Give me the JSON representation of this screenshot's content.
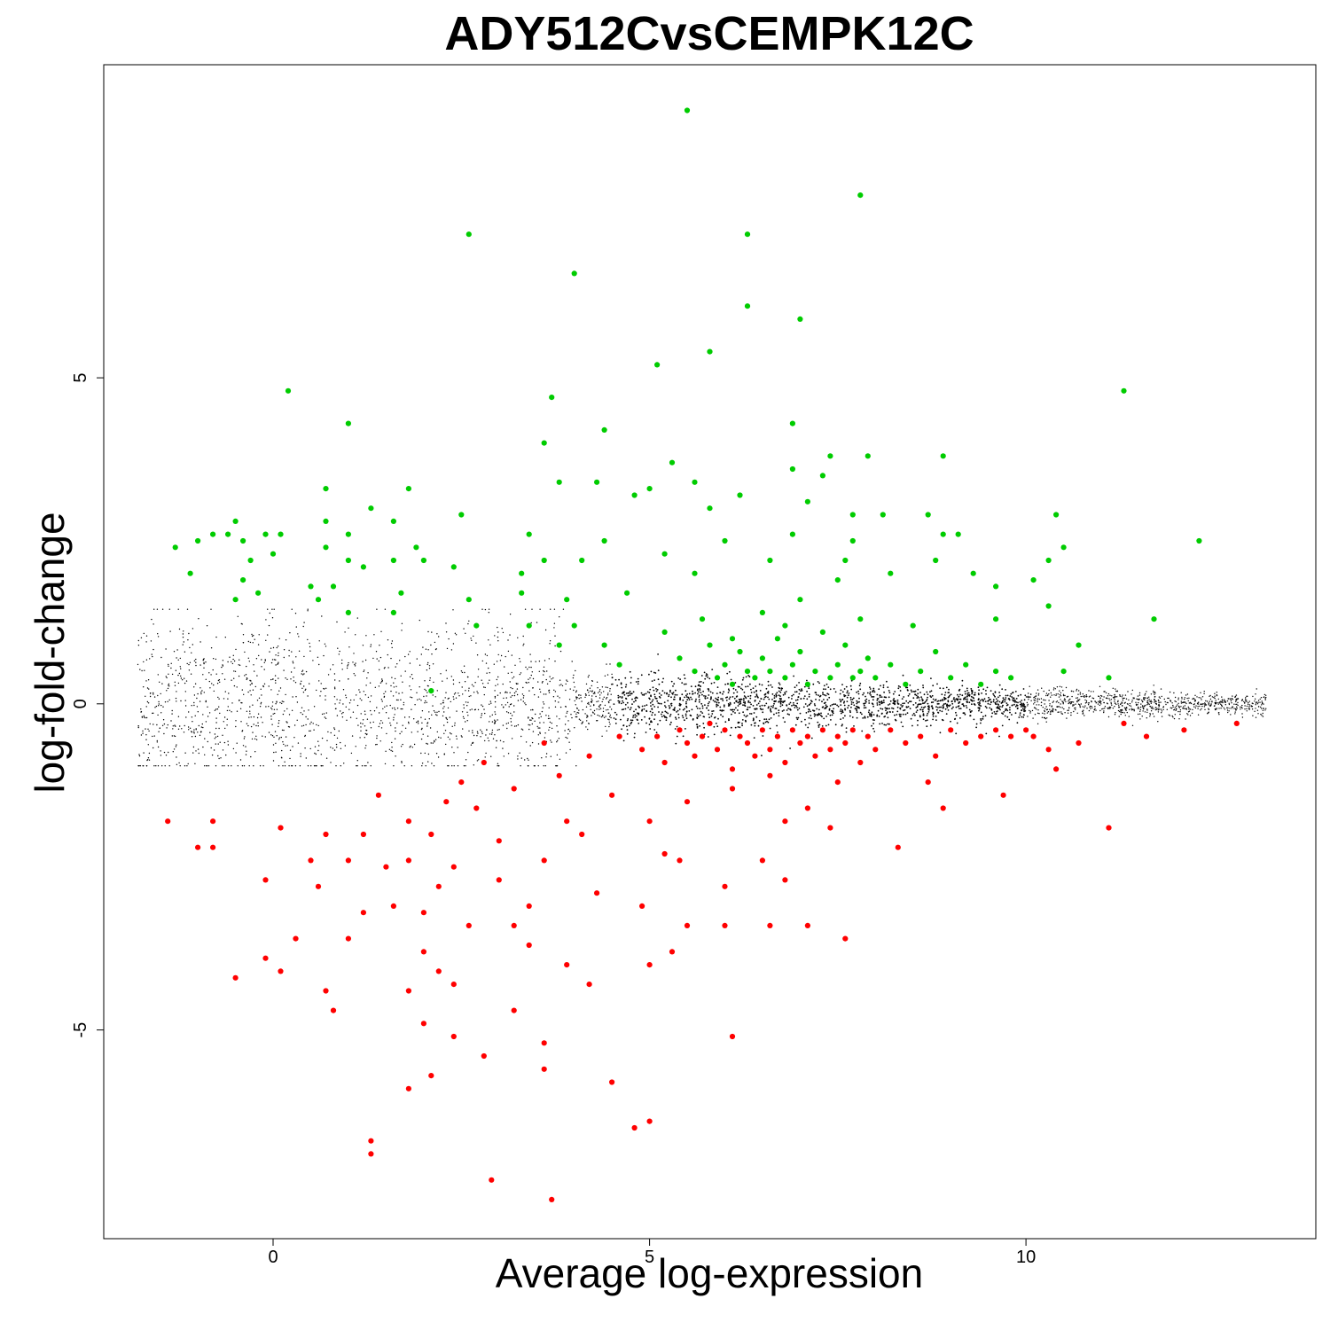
{
  "chart_data": {
    "type": "scatter",
    "title": "ADY512CvsCEMPK12C",
    "xlabel": "Average log-expression",
    "ylabel": "log-fold-change",
    "xlim": [
      -2.25,
      13.85
    ],
    "ylim": [
      -8.2,
      9.8
    ],
    "x_ticks": [
      0,
      5,
      10
    ],
    "x_tick_labels": [
      "0",
      "5",
      "10"
    ],
    "y_ticks": [
      -5,
      0,
      5
    ],
    "y_tick_labels": [
      "-5",
      "0",
      "5"
    ],
    "grid": false,
    "legend": "none",
    "colors": {
      "up": "#00cc00",
      "down": "#ff0000",
      "not_significant": "#000000"
    },
    "series": [
      {
        "key": "up",
        "color": "#00cc00",
        "points": [
          [
            5.5,
            9.1
          ],
          [
            7.8,
            7.8
          ],
          [
            2.6,
            7.2
          ],
          [
            6.3,
            7.2
          ],
          [
            4.0,
            6.6
          ],
          [
            6.3,
            6.1
          ],
          [
            7.0,
            5.9
          ],
          [
            5.8,
            5.4
          ],
          [
            5.1,
            5.2
          ],
          [
            0.2,
            4.8
          ],
          [
            11.3,
            4.8
          ],
          [
            3.7,
            4.7
          ],
          [
            1.0,
            4.3
          ],
          [
            6.9,
            4.3
          ],
          [
            4.4,
            4.2
          ],
          [
            3.6,
            4.0
          ],
          [
            7.9,
            3.8
          ],
          [
            8.9,
            3.8
          ],
          [
            7.4,
            3.8
          ],
          [
            5.3,
            3.7
          ],
          [
            6.9,
            3.6
          ],
          [
            7.3,
            3.5
          ],
          [
            0.7,
            3.3
          ],
          [
            1.8,
            3.3
          ],
          [
            3.8,
            3.4
          ],
          [
            4.3,
            3.4
          ],
          [
            5.6,
            3.4
          ],
          [
            5.0,
            3.3
          ],
          [
            4.8,
            3.2
          ],
          [
            6.2,
            3.2
          ],
          [
            7.1,
            3.1
          ],
          [
            1.3,
            3.0
          ],
          [
            5.8,
            3.0
          ],
          [
            -0.5,
            2.8
          ],
          [
            0.7,
            2.8
          ],
          [
            1.6,
            2.8
          ],
          [
            2.5,
            2.9
          ],
          [
            7.7,
            2.9
          ],
          [
            8.1,
            2.9
          ],
          [
            8.7,
            2.9
          ],
          [
            10.4,
            2.9
          ],
          [
            3.4,
            2.6
          ],
          [
            -1.3,
            2.4
          ],
          [
            -1.0,
            2.5
          ],
          [
            -0.8,
            2.6
          ],
          [
            -0.6,
            2.6
          ],
          [
            -0.4,
            2.5
          ],
          [
            -0.1,
            2.6
          ],
          [
            0.1,
            2.6
          ],
          [
            0.7,
            2.4
          ],
          [
            1.0,
            2.6
          ],
          [
            1.9,
            2.4
          ],
          [
            4.4,
            2.5
          ],
          [
            6.0,
            2.5
          ],
          [
            6.9,
            2.6
          ],
          [
            7.7,
            2.5
          ],
          [
            8.9,
            2.6
          ],
          [
            9.1,
            2.6
          ],
          [
            10.5,
            2.4
          ],
          [
            12.3,
            2.5
          ],
          [
            -0.3,
            2.2
          ],
          [
            0.0,
            2.3
          ],
          [
            1.0,
            2.2
          ],
          [
            1.6,
            2.2
          ],
          [
            2.0,
            2.2
          ],
          [
            3.6,
            2.2
          ],
          [
            4.1,
            2.2
          ],
          [
            5.2,
            2.3
          ],
          [
            6.6,
            2.2
          ],
          [
            7.6,
            2.2
          ],
          [
            8.8,
            2.2
          ],
          [
            10.3,
            2.2
          ],
          [
            -1.1,
            2.0
          ],
          [
            -0.4,
            1.9
          ],
          [
            0.5,
            1.8
          ],
          [
            1.2,
            2.1
          ],
          [
            2.4,
            2.1
          ],
          [
            3.3,
            2.0
          ],
          [
            5.6,
            2.0
          ],
          [
            7.5,
            1.9
          ],
          [
            8.2,
            2.0
          ],
          [
            9.3,
            2.0
          ],
          [
            10.1,
            1.9
          ],
          [
            -0.2,
            1.7
          ],
          [
            0.8,
            1.8
          ],
          [
            1.7,
            1.7
          ],
          [
            3.3,
            1.7
          ],
          [
            4.7,
            1.7
          ],
          [
            9.6,
            1.8
          ],
          [
            -0.5,
            1.6
          ],
          [
            0.6,
            1.6
          ],
          [
            2.6,
            1.6
          ],
          [
            3.9,
            1.6
          ],
          [
            10.3,
            1.5
          ],
          [
            11.7,
            1.3
          ],
          [
            1.0,
            1.4
          ],
          [
            1.6,
            1.4
          ],
          [
            2.7,
            1.2
          ],
          [
            3.4,
            1.2
          ],
          [
            4.0,
            1.2
          ],
          [
            9.6,
            1.3
          ],
          [
            3.8,
            0.9
          ],
          [
            4.4,
            0.9
          ],
          [
            10.7,
            0.9
          ],
          [
            4.6,
            0.6
          ],
          [
            10.5,
            0.5
          ],
          [
            11.1,
            0.4
          ],
          [
            2.1,
            0.2
          ],
          [
            5.4,
            0.7
          ],
          [
            5.6,
            0.5
          ],
          [
            5.8,
            0.9
          ],
          [
            5.9,
            0.4
          ],
          [
            6.0,
            0.6
          ],
          [
            6.1,
            0.3
          ],
          [
            6.2,
            0.8
          ],
          [
            6.3,
            0.5
          ],
          [
            6.4,
            0.4
          ],
          [
            6.5,
            0.7
          ],
          [
            6.6,
            0.5
          ],
          [
            6.7,
            1.0
          ],
          [
            6.8,
            0.4
          ],
          [
            6.9,
            0.6
          ],
          [
            7.0,
            0.8
          ],
          [
            7.1,
            0.3
          ],
          [
            7.2,
            0.5
          ],
          [
            7.3,
            1.1
          ],
          [
            7.4,
            0.4
          ],
          [
            7.5,
            0.6
          ],
          [
            7.6,
            0.9
          ],
          [
            7.7,
            0.4
          ],
          [
            7.8,
            0.5
          ],
          [
            7.9,
            0.7
          ],
          [
            8.0,
            0.4
          ],
          [
            8.2,
            0.6
          ],
          [
            8.4,
            0.3
          ],
          [
            8.6,
            0.5
          ],
          [
            8.8,
            0.8
          ],
          [
            9.0,
            0.4
          ],
          [
            9.2,
            0.6
          ],
          [
            9.4,
            0.3
          ],
          [
            9.6,
            0.5
          ],
          [
            9.8,
            0.4
          ],
          [
            5.2,
            1.1
          ],
          [
            6.5,
            1.4
          ],
          [
            7.0,
            1.6
          ],
          [
            7.8,
            1.3
          ],
          [
            8.5,
            1.2
          ],
          [
            5.7,
            1.3
          ],
          [
            6.8,
            1.2
          ],
          [
            6.1,
            1.0
          ]
        ]
      },
      {
        "key": "down",
        "color": "#ff0000",
        "points": [
          [
            3.7,
            -7.6
          ],
          [
            2.9,
            -7.3
          ],
          [
            1.3,
            -6.9
          ],
          [
            1.3,
            -6.7
          ],
          [
            4.8,
            -6.5
          ],
          [
            5.0,
            -6.4
          ],
          [
            1.8,
            -5.9
          ],
          [
            4.5,
            -5.8
          ],
          [
            2.1,
            -5.7
          ],
          [
            3.6,
            -5.6
          ],
          [
            2.8,
            -5.4
          ],
          [
            3.6,
            -5.2
          ],
          [
            2.4,
            -5.1
          ],
          [
            6.1,
            -5.1
          ],
          [
            2.0,
            -4.9
          ],
          [
            3.2,
            -4.7
          ],
          [
            0.8,
            -4.7
          ],
          [
            -0.5,
            -4.2
          ],
          [
            0.7,
            -4.4
          ],
          [
            1.8,
            -4.4
          ],
          [
            2.4,
            -4.3
          ],
          [
            4.2,
            -4.3
          ],
          [
            0.1,
            -4.1
          ],
          [
            2.2,
            -4.1
          ],
          [
            -0.1,
            -3.9
          ],
          [
            3.9,
            -4.0
          ],
          [
            5.0,
            -4.0
          ],
          [
            5.3,
            -3.8
          ],
          [
            2.0,
            -3.8
          ],
          [
            3.4,
            -3.7
          ],
          [
            0.3,
            -3.6
          ],
          [
            1.0,
            -3.6
          ],
          [
            2.6,
            -3.4
          ],
          [
            3.2,
            -3.4
          ],
          [
            6.6,
            -3.4
          ],
          [
            7.1,
            -3.4
          ],
          [
            7.6,
            -3.6
          ],
          [
            5.5,
            -3.4
          ],
          [
            6.0,
            -3.4
          ],
          [
            1.2,
            -3.2
          ],
          [
            2.0,
            -3.2
          ],
          [
            3.4,
            -3.1
          ],
          [
            4.9,
            -3.1
          ],
          [
            1.6,
            -3.1
          ],
          [
            -0.1,
            -2.7
          ],
          [
            0.6,
            -2.8
          ],
          [
            1.5,
            -2.5
          ],
          [
            2.2,
            -2.8
          ],
          [
            3.0,
            -2.7
          ],
          [
            4.3,
            -2.9
          ],
          [
            6.0,
            -2.8
          ],
          [
            6.8,
            -2.7
          ],
          [
            0.5,
            -2.4
          ],
          [
            1.0,
            -2.4
          ],
          [
            1.8,
            -2.4
          ],
          [
            2.4,
            -2.5
          ],
          [
            3.6,
            -2.4
          ],
          [
            5.4,
            -2.4
          ],
          [
            6.5,
            -2.4
          ],
          [
            -1.0,
            -2.2
          ],
          [
            -0.8,
            -2.2
          ],
          [
            0.7,
            -2.0
          ],
          [
            1.2,
            -2.0
          ],
          [
            2.1,
            -2.0
          ],
          [
            3.0,
            -2.1
          ],
          [
            4.1,
            -2.0
          ],
          [
            5.2,
            -2.3
          ],
          [
            8.3,
            -2.2
          ],
          [
            -1.4,
            -1.8
          ],
          [
            -0.8,
            -1.8
          ],
          [
            0.1,
            -1.9
          ],
          [
            1.8,
            -1.8
          ],
          [
            2.7,
            -1.6
          ],
          [
            3.9,
            -1.8
          ],
          [
            5.0,
            -1.8
          ],
          [
            6.8,
            -1.8
          ],
          [
            7.4,
            -1.9
          ],
          [
            11.1,
            -1.9
          ],
          [
            1.4,
            -1.4
          ],
          [
            2.3,
            -1.5
          ],
          [
            3.2,
            -1.3
          ],
          [
            4.5,
            -1.4
          ],
          [
            5.5,
            -1.5
          ],
          [
            7.1,
            -1.6
          ],
          [
            8.9,
            -1.6
          ],
          [
            9.7,
            -1.4
          ],
          [
            2.5,
            -1.2
          ],
          [
            3.8,
            -1.1
          ],
          [
            6.1,
            -1.3
          ],
          [
            8.7,
            -1.2
          ],
          [
            10.4,
            -1.0
          ],
          [
            2.8,
            -0.9
          ],
          [
            3.6,
            -0.6
          ],
          [
            4.2,
            -0.8
          ],
          [
            11.3,
            -0.3
          ],
          [
            11.6,
            -0.5
          ],
          [
            12.1,
            -0.4
          ],
          [
            12.8,
            -0.3
          ],
          [
            10.7,
            -0.6
          ],
          [
            10.1,
            -0.5
          ],
          [
            4.6,
            -0.5
          ],
          [
            4.9,
            -0.7
          ],
          [
            5.1,
            -0.5
          ],
          [
            5.2,
            -0.9
          ],
          [
            5.4,
            -0.4
          ],
          [
            5.5,
            -0.6
          ],
          [
            5.6,
            -0.8
          ],
          [
            5.7,
            -0.5
          ],
          [
            5.8,
            -0.3
          ],
          [
            5.9,
            -0.7
          ],
          [
            6.0,
            -0.4
          ],
          [
            6.1,
            -1.0
          ],
          [
            6.2,
            -0.5
          ],
          [
            6.3,
            -0.6
          ],
          [
            6.4,
            -0.8
          ],
          [
            6.5,
            -0.4
          ],
          [
            6.6,
            -0.7
          ],
          [
            6.7,
            -0.5
          ],
          [
            6.8,
            -0.9
          ],
          [
            6.9,
            -0.4
          ],
          [
            7.0,
            -0.6
          ],
          [
            7.1,
            -0.5
          ],
          [
            7.2,
            -0.8
          ],
          [
            7.3,
            -0.4
          ],
          [
            7.4,
            -0.7
          ],
          [
            7.5,
            -0.5
          ],
          [
            7.6,
            -0.6
          ],
          [
            7.7,
            -0.4
          ],
          [
            7.8,
            -0.9
          ],
          [
            7.9,
            -0.5
          ],
          [
            8.0,
            -0.7
          ],
          [
            8.2,
            -0.4
          ],
          [
            8.4,
            -0.6
          ],
          [
            8.6,
            -0.5
          ],
          [
            8.8,
            -0.8
          ],
          [
            9.0,
            -0.4
          ],
          [
            9.2,
            -0.6
          ],
          [
            9.4,
            -0.5
          ],
          [
            9.6,
            -0.4
          ],
          [
            9.8,
            -0.5
          ],
          [
            10.0,
            -0.4
          ],
          [
            10.3,
            -0.7
          ],
          [
            6.6,
            -1.1
          ],
          [
            7.5,
            -1.2
          ]
        ]
      }
    ]
  }
}
